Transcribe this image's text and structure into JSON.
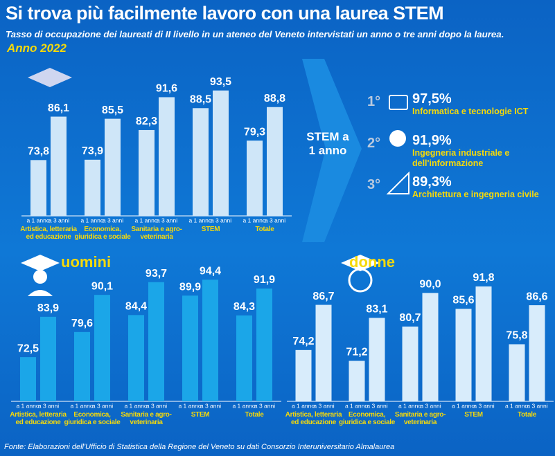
{
  "header": {
    "title": "Si trova più facilmente lavoro con una laurea STEM",
    "subtitle": "Tasso di occupazione dei laureati di II livello in un ateneo del Veneto intervistati un anno o tre anni dopo la laurea.",
    "year": "Anno 2022"
  },
  "chart_data": [
    {
      "type": "bar",
      "categories": [
        "Artistica, letteraria ed educazione",
        "Economica, giuridica e sociale",
        "Sanitaria e agro-veterinaria",
        "STEM",
        "Totale"
      ],
      "series": [
        {
          "name": "a 1 anno",
          "color": "#cfe6f8",
          "values": [
            73.8,
            73.9,
            82.3,
            88.5,
            79.3
          ],
          "value_labels": [
            "73,8",
            "73,9",
            "82,3",
            "88,5",
            "79,3"
          ]
        },
        {
          "name": "a 3 anni",
          "color": "#cfe6f8",
          "values": [
            86.1,
            85.5,
            91.6,
            93.5,
            88.8
          ],
          "value_labels": [
            "86,1",
            "85,5",
            "91,6",
            "93,5",
            "88,8"
          ]
        }
      ],
      "ylim": [
        58,
        96
      ]
    },
    {
      "type": "bar",
      "title": "uomini",
      "categories": [
        "Artistica, letteraria ed educazione",
        "Economica, giuridica e sociale",
        "Sanitaria e agro-veterinaria",
        "STEM",
        "Totale"
      ],
      "series": [
        {
          "name": "a 1 anno",
          "color": "#1ba6e8",
          "values": [
            72.5,
            79.6,
            84.4,
            89.9,
            84.3
          ],
          "value_labels": [
            "72,5",
            "79,6",
            "84,4",
            "89,9",
            "84,3"
          ]
        },
        {
          "name": "a 3 anni",
          "color": "#1ba6e8",
          "values": [
            83.9,
            90.1,
            93.7,
            94.4,
            91.9
          ],
          "value_labels": [
            "83,9",
            "90,1",
            "93,7",
            "94,4",
            "91,9"
          ]
        }
      ],
      "ylim": [
        60,
        96
      ]
    },
    {
      "type": "bar",
      "title": "donne",
      "categories": [
        "Artistica, letteraria ed educazione",
        "Economica, giuridica e sociale",
        "Sanitaria e agro-veterinaria",
        "STEM",
        "Totale"
      ],
      "series": [
        {
          "name": "a 1 anno",
          "color": "#d8ecfb",
          "values": [
            74.2,
            71.2,
            80.7,
            85.6,
            75.8
          ],
          "value_labels": [
            "74,2",
            "71,2",
            "80,7",
            "85,6",
            "75,8"
          ]
        },
        {
          "name": "a 3 anni",
          "color": "#d8ecfb",
          "values": [
            86.7,
            83.1,
            90.0,
            91.8,
            86.6
          ],
          "value_labels": [
            "86,7",
            "83,1",
            "90,0",
            "91,8",
            "86,6"
          ]
        }
      ],
      "ylim": [
        60,
        96
      ]
    }
  ],
  "ranking": {
    "title": "STEM a 1 anno",
    "items": [
      {
        "rank": "1°",
        "value": "97,5%",
        "label": "Informatica e tecnologie ICT"
      },
      {
        "rank": "2°",
        "value": "91,9%",
        "label": "Ingegneria industriale e dell'informazione"
      },
      {
        "rank": "3°",
        "value": "89,3%",
        "label": "Architettura e ingegneria civile"
      }
    ]
  },
  "source": "Fonte: Elaborazioni dell'Ufficio di Statistica della Regione del Veneto su dati Consorzio Interuniversitario Almalaurea"
}
